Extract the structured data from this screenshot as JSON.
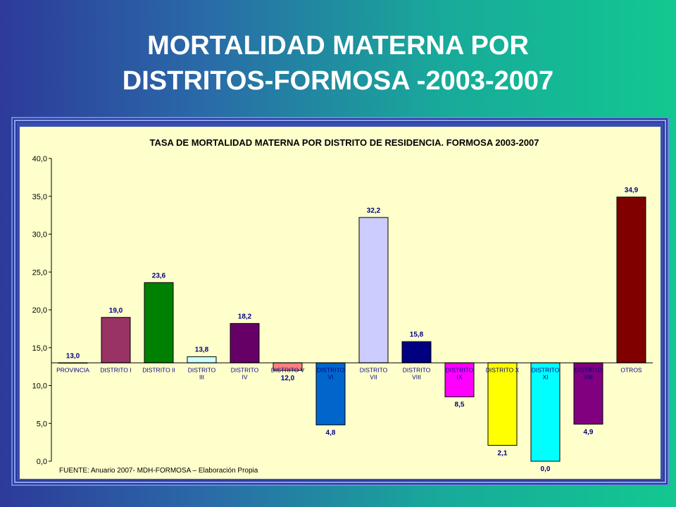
{
  "slide": {
    "title_line1": "MORTALIDAD MATERNA POR",
    "title_line2": "DISTRITOS-FORMOSA -2003-2007"
  },
  "chart_data": {
    "type": "bar",
    "title": "TASA DE MORTALIDAD MATERNA POR DISTRITO DE RESIDENCIA. FORMOSA 2003-2007",
    "source": "FUENTE:  Anuario 2007- MDH-FORMOSA  – Elaboración Propia",
    "baseline": 13.0,
    "ylim": [
      0,
      40
    ],
    "yticks": [
      "0,0",
      "5,0",
      "10,0",
      "15,0",
      "20,0",
      "25,0",
      "30,0",
      "35,0",
      "40,0"
    ],
    "grid": false,
    "categories": [
      [
        "PROVINCIA"
      ],
      [
        "DISTRITO I"
      ],
      [
        "DISTRITO II"
      ],
      [
        "DISTRITO",
        "III"
      ],
      [
        "DISTRITO",
        "IV"
      ],
      [
        "DISTRITO V"
      ],
      [
        "DISTRITO",
        "VI"
      ],
      [
        "DISTRITO",
        "VII"
      ],
      [
        "DISTRITO",
        "VIII"
      ],
      [
        "DISTRITO",
        "IX"
      ],
      [
        "DISTRITO X"
      ],
      [
        "DISTRITO",
        "XI"
      ],
      [
        "DISTRITO",
        "XIII"
      ],
      [
        "OTROS"
      ]
    ],
    "values": [
      13.0,
      19.0,
      23.6,
      13.8,
      18.2,
      12.0,
      4.8,
      32.2,
      15.8,
      8.5,
      2.1,
      0.0,
      4.9,
      34.9
    ],
    "value_labels": [
      "13,0",
      "19,0",
      "23,6",
      "13,8",
      "18,2",
      "12,0",
      "4,8",
      "32,2",
      "15,8",
      "8,5",
      "2,1",
      "0,0",
      "4,9",
      "34,9"
    ],
    "colors": [
      "#ffffcc",
      "#993366",
      "#008000",
      "#ccffff",
      "#660066",
      "#ff8080",
      "#0066cc",
      "#ccccff",
      "#000080",
      "#ff00ff",
      "#ffff00",
      "#00ffff",
      "#800080",
      "#800000"
    ],
    "background": "#ffffcc",
    "label_color": "#000080"
  }
}
